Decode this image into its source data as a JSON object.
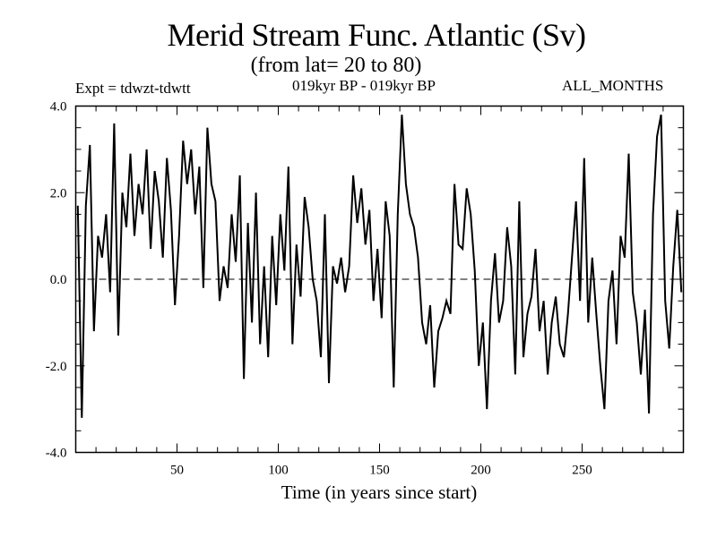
{
  "chart_data": {
    "type": "line",
    "title": "Merid Stream Func. Atlantic (Sv)",
    "subtitle": "(from lat= 20 to 80)",
    "annotations": {
      "left": "Expt = tdwzt-tdwtt",
      "center": "019kyr BP - 019kyr BP",
      "right": "ALL_MONTHS"
    },
    "xlabel": "Time (in years since start)",
    "ylabel": "",
    "xlim": [
      0,
      300
    ],
    "ylim": [
      -4,
      4
    ],
    "xticks": [
      50,
      100,
      150,
      200,
      250
    ],
    "xtick_labels": [
      "50",
      "100",
      "150",
      "200",
      "250"
    ],
    "yticks": [
      4,
      2,
      0,
      -2,
      -4
    ],
    "ytick_labels": [
      "4.0",
      "2.0",
      "0.0",
      "-2.0",
      "-4.0"
    ],
    "reference_line": {
      "y": 0,
      "style": "dashed"
    },
    "grid": false,
    "series": [
      {
        "name": "Merid Stream Func.",
        "x_start": 1,
        "x_step": 2,
        "values": [
          1.7,
          -3.2,
          1.7,
          3.1,
          -1.2,
          1.0,
          0.5,
          1.5,
          -0.3,
          3.6,
          -1.3,
          2.0,
          1.2,
          2.9,
          1.0,
          2.2,
          1.5,
          3.0,
          0.7,
          2.5,
          1.8,
          0.5,
          2.8,
          1.6,
          -0.6,
          1.0,
          3.2,
          2.2,
          3.0,
          1.5,
          2.6,
          -0.2,
          3.5,
          2.2,
          1.8,
          -0.5,
          0.3,
          -0.2,
          1.5,
          0.4,
          2.4,
          -2.3,
          1.3,
          -1.0,
          2.0,
          -1.5,
          0.3,
          -1.8,
          1.0,
          -0.6,
          1.5,
          0.2,
          2.6,
          -1.5,
          0.8,
          -0.4,
          1.9,
          1.2,
          0.0,
          -0.5,
          -1.8,
          1.5,
          -2.4,
          0.3,
          -0.1,
          0.5,
          -0.3,
          0.3,
          2.4,
          1.3,
          2.1,
          0.8,
          1.6,
          -0.5,
          0.7,
          -0.9,
          1.8,
          1.0,
          -2.5,
          1.5,
          3.8,
          2.2,
          1.5,
          1.2,
          0.5,
          -1.0,
          -1.5,
          -0.6,
          -2.5,
          -1.2,
          -0.9,
          -0.5,
          -0.8,
          2.2,
          0.8,
          0.7,
          2.1,
          1.5,
          0.2,
          -2.0,
          -1.0,
          -3.0,
          -0.5,
          0.6,
          -1.0,
          -0.5,
          1.2,
          0.3,
          -2.2,
          1.8,
          -1.8,
          -0.8,
          -0.4,
          0.7,
          -1.2,
          -0.5,
          -2.2,
          -1.0,
          -0.4,
          -1.5,
          -1.8,
          -0.8,
          0.5,
          1.8,
          -0.5,
          2.8,
          -1.0,
          0.5,
          -0.8,
          -2.0,
          -3.0,
          -0.5,
          0.2,
          -1.5,
          1.0,
          0.5,
          2.9,
          -0.3,
          -1.0,
          -2.2,
          -0.7,
          -3.1,
          1.5,
          3.3,
          3.8,
          -0.5,
          -1.6,
          0.3,
          1.6,
          -0.3
        ]
      }
    ],
    "colors": {
      "line": "#000000",
      "background": "#ffffff"
    }
  }
}
